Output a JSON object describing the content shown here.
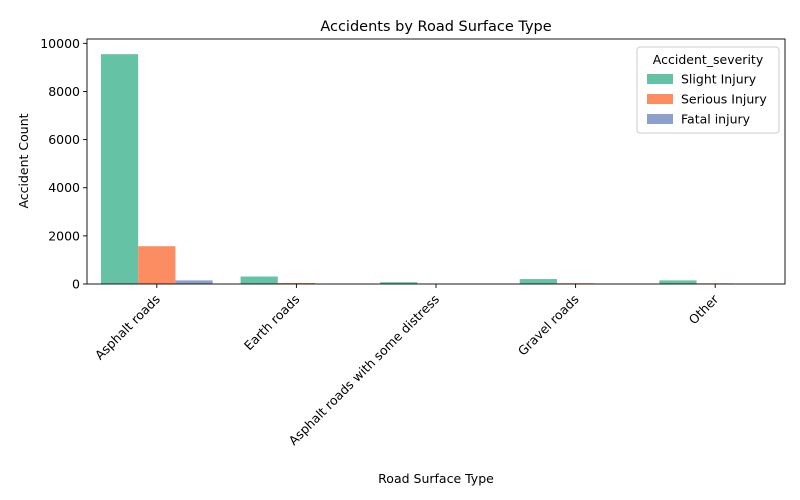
{
  "chart_data": {
    "type": "bar",
    "title": "Accidents by Road Surface Type",
    "xlabel": "Road Surface Type",
    "ylabel": "Accident Count",
    "ylim": [
      0,
      10000
    ],
    "yticks": [
      0,
      2000,
      4000,
      6000,
      8000,
      10000
    ],
    "categories": [
      "Asphalt roads",
      "Earth roads",
      "Asphalt roads with some distress",
      "Gravel roads",
      "Other"
    ],
    "series": [
      {
        "name": "Slight Injury",
        "color": "#66c2a5",
        "values": [
          9550,
          310,
          75,
          205,
          150
        ]
      },
      {
        "name": "Serious Injury",
        "color": "#fc8d62",
        "values": [
          1570,
          40,
          5,
          30,
          25
        ]
      },
      {
        "name": "Fatal injury",
        "color": "#8da0cb",
        "values": [
          150,
          5,
          0,
          2,
          2
        ]
      }
    ],
    "legend": {
      "title": "Accident_severity",
      "position": "top-right"
    },
    "grid": false
  }
}
